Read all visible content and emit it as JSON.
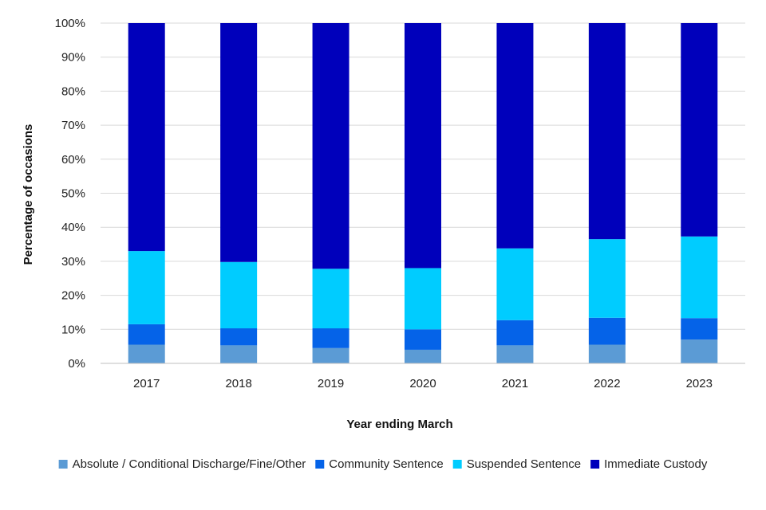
{
  "chart_data": {
    "type": "bar",
    "stacked": true,
    "categories": [
      "2017",
      "2018",
      "2019",
      "2020",
      "2021",
      "2022",
      "2023"
    ],
    "series": [
      {
        "name": "Absolute / Conditional Discharge/Fine/Other",
        "color": "#5b9bd5",
        "values": [
          5.5,
          5.3,
          4.5,
          4.0,
          5.3,
          5.5,
          7.0
        ]
      },
      {
        "name": "Community Sentence",
        "color": "#0563e8",
        "values": [
          6.0,
          5.0,
          5.8,
          6.0,
          7.4,
          7.9,
          6.3
        ]
      },
      {
        "name": "Suspended Sentence",
        "color": "#00ccff",
        "values": [
          21.5,
          19.5,
          17.5,
          18.0,
          21.1,
          23.1,
          24.0
        ]
      },
      {
        "name": "Immediate Custody",
        "color": "#0000bb",
        "values": [
          67.0,
          70.2,
          72.2,
          72.0,
          66.2,
          63.5,
          62.7
        ]
      }
    ],
    "yticks": [
      "0%",
      "10%",
      "20%",
      "30%",
      "40%",
      "50%",
      "60%",
      "70%",
      "80%",
      "90%",
      "100%"
    ],
    "ylim": [
      0,
      100
    ],
    "xlabel": "Year ending March",
    "ylabel": "Percentage of occasions",
    "title": "",
    "grid": true,
    "legend_position": "bottom"
  }
}
